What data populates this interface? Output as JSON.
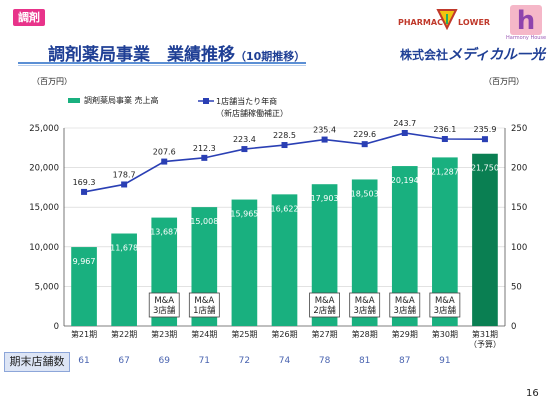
{
  "header": {
    "badge": "調剤",
    "title_main": "調剤薬局事業　業績推移",
    "title_sub": "（10期推移）",
    "company_prefix": "株式会社",
    "company_name": "メディカル一光",
    "brand_left": "PHARMAC",
    "brand_right": "LOWER",
    "brand_sub": "Harmony House",
    "brand_h_letter": "h"
  },
  "colors": {
    "bar": "#19b07f",
    "bar_forecast": "#0a7f52",
    "line": "#2a3fb4",
    "title": "#1f3f95",
    "badge": "#e8338a"
  },
  "chart_data": {
    "type": "bar",
    "categories": [
      "第21期",
      "第22期",
      "第23期",
      "第24期",
      "第25期",
      "第26期",
      "第27期",
      "第28期",
      "第29期",
      "第30期",
      "第31期"
    ],
    "forecast_note": "（予算）",
    "unit_left": "（百万円）",
    "unit_right": "（百万円）",
    "series": [
      {
        "name": "調剤薬局事業 売上高",
        "values": [
          9967,
          11678,
          13687,
          15008,
          15965,
          16622,
          17903,
          18503,
          20194,
          21287,
          21750
        ],
        "labels": [
          "9,967",
          "11,678",
          "13,687",
          "15,008",
          "15,965",
          "16,622",
          "17,903",
          "18,503",
          "20,194",
          "21,287",
          "21,750"
        ]
      },
      {
        "name": "1店舗当たり年商",
        "name_note": "（新店舗稼働補正）",
        "type": "line",
        "values": [
          169.3,
          178.7,
          207.6,
          212.3,
          223.4,
          228.5,
          235.4,
          229.6,
          243.7,
          236.1,
          235.9
        ],
        "labels": [
          "169.3",
          "178.7",
          "207.6",
          "212.3",
          "223.4",
          "228.5",
          "235.4",
          "229.6",
          "243.7",
          "236.1",
          "235.9"
        ]
      }
    ],
    "y_left": {
      "min": 0,
      "max": 25000,
      "ticks": [
        "0",
        "5,000",
        "10,000",
        "15,000",
        "20,000",
        "25,000"
      ]
    },
    "y_right": {
      "min": 0,
      "max": 250,
      "ticks": [
        "0",
        "50",
        "100",
        "150",
        "200",
        "250"
      ]
    },
    "annotations": [
      {
        "index": 2,
        "line1": "M&A",
        "line2": "3店舗"
      },
      {
        "index": 3,
        "line1": "M&A",
        "line2": "1店舗"
      },
      {
        "index": 6,
        "line1": "M&A",
        "line2": "2店舗"
      },
      {
        "index": 7,
        "line1": "M&A",
        "line2": "3店舗"
      },
      {
        "index": 8,
        "line1": "M&A",
        "line2": "3店舗"
      },
      {
        "index": 9,
        "line1": "M&A",
        "line2": "3店舗"
      }
    ],
    "legend_placement": "top-left"
  },
  "stores": {
    "label": "期末店舗数",
    "values": [
      "61",
      "67",
      "69",
      "71",
      "72",
      "74",
      "78",
      "81",
      "87",
      "91",
      ""
    ]
  },
  "page_number": "16"
}
